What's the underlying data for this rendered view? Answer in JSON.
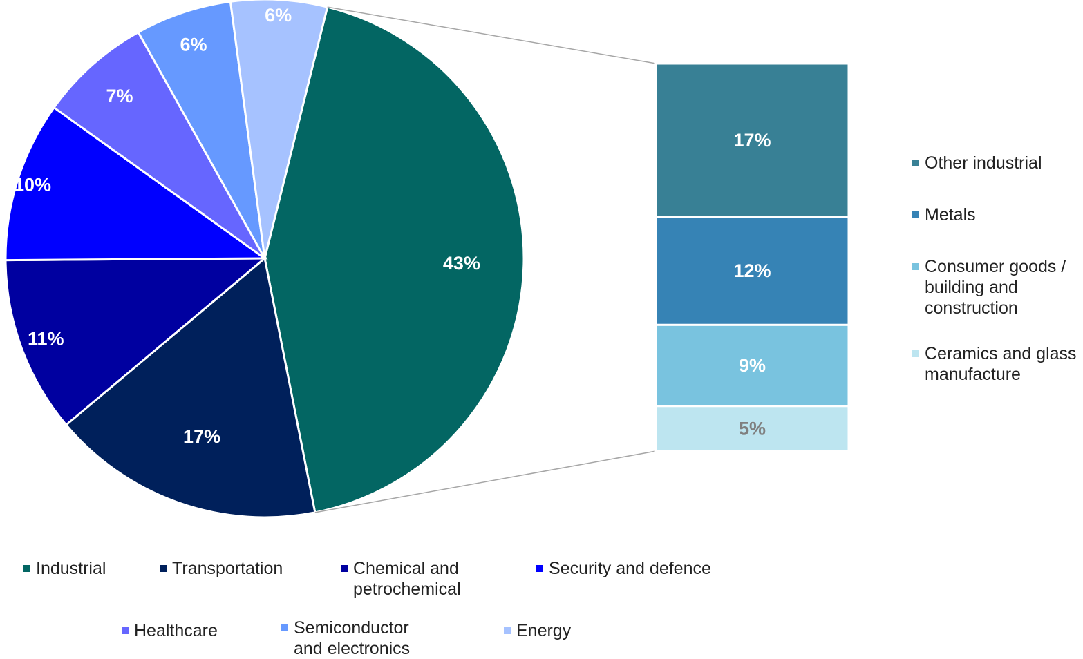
{
  "chart_data": [
    {
      "type": "pie",
      "slices": [
        {
          "label": "Industrial",
          "value": 43,
          "display": "43%",
          "color": "#036663",
          "label_color": "#ffffff"
        },
        {
          "label": "Transportation",
          "value": 17,
          "display": "17%",
          "color": "#00205b",
          "label_color": "#ffffff"
        },
        {
          "label": "Chemical and petrochemical",
          "value": 11,
          "display": "11%",
          "color": "#0000a0",
          "label_color": "#ffffff"
        },
        {
          "label": "Security and defence",
          "value": 10,
          "display": "10%",
          "color": "#0000ff",
          "label_color": "#ffffff"
        },
        {
          "label": "Healthcare",
          "value": 7,
          "display": "7%",
          "color": "#6666ff",
          "label_color": "#ffffff"
        },
        {
          "label": "Semiconductor and electronics",
          "value": 6,
          "display": "6%",
          "color": "#6699ff",
          "label_color": "#ffffff"
        },
        {
          "label": "Energy",
          "value": 6,
          "display": "6%",
          "color": "#a6c2ff",
          "label_color": "#ffffff"
        }
      ],
      "legend_position": "bottom"
    },
    {
      "type": "bar",
      "stacked": true,
      "breakdown_of": "Industrial",
      "segments": [
        {
          "label": "Other industrial",
          "value": 17,
          "display": "17%",
          "color": "#388095",
          "label_color": "#ffffff"
        },
        {
          "label": "Metals",
          "value": 12,
          "display": "12%",
          "color": "#3683b5",
          "label_color": "#ffffff"
        },
        {
          "label": "Consumer goods /\nbuilding and\nconstruction",
          "value": 9,
          "display": "9%",
          "color": "#79c3df",
          "label_color": "#ffffff"
        },
        {
          "label": "Ceramics and glass\nmanufacture",
          "value": 5,
          "display": "5%",
          "color": "#bde5f0",
          "label_color": "#7f7f7f"
        }
      ],
      "legend_position": "right"
    }
  ]
}
